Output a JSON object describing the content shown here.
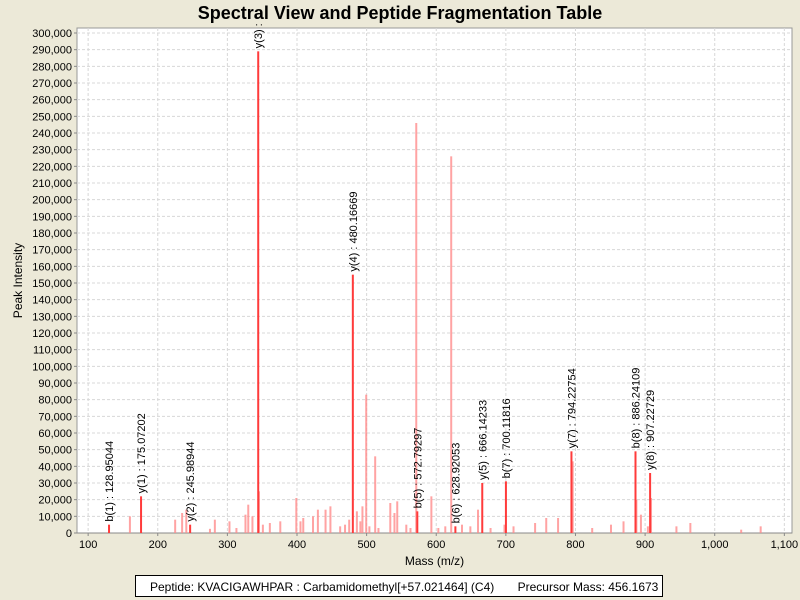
{
  "chart_data": {
    "type": "bar",
    "title": "Spectral View and Peptide Fragmentation Table",
    "xlabel": "Mass (m/z)",
    "ylabel": "Peak Intensity",
    "xlim": [
      84,
      1111
    ],
    "ylim": [
      0,
      303000
    ],
    "xticks": [
      100,
      200,
      300,
      400,
      500,
      600,
      700,
      800,
      900,
      1000,
      1100
    ],
    "xtick_labels": [
      "100",
      "200",
      "300",
      "400",
      "500",
      "600",
      "700",
      "800",
      "900",
      "1,000",
      "1,100"
    ],
    "yticks": [
      0,
      10000,
      20000,
      30000,
      40000,
      50000,
      60000,
      70000,
      80000,
      90000,
      100000,
      110000,
      120000,
      130000,
      140000,
      150000,
      160000,
      170000,
      180000,
      190000,
      200000,
      210000,
      220000,
      230000,
      240000,
      250000,
      260000,
      270000,
      280000,
      290000,
      300000
    ],
    "grid": true,
    "colors": {
      "annotated": "#ff3b3b",
      "unannotated": "#ff8c8c"
    },
    "peaks_annotated": [
      {
        "mz": 130.0,
        "intensity": 5000,
        "label": "b(1) : 128.95044"
      },
      {
        "mz": 176.0,
        "intensity": 22000,
        "label": "y(1) : 175.07202"
      },
      {
        "mz": 246.5,
        "intensity": 5000,
        "label": "y(2) : 245.98944"
      },
      {
        "mz": 344.3,
        "intensity": 289000,
        "label": "y(3) :"
      },
      {
        "mz": 480.2,
        "intensity": 155000,
        "label": "y(4) : 480.16669"
      },
      {
        "mz": 572.8,
        "intensity": 13000,
        "label": "b(5) : 572.79297"
      },
      {
        "mz": 627.5,
        "intensity": 4000,
        "label": "b(6) : 628.92053"
      },
      {
        "mz": 666.1,
        "intensity": 30000,
        "label": "y(5) : 666.14233"
      },
      {
        "mz": 700.1,
        "intensity": 31000,
        "label": "b(7) : 700.11816"
      },
      {
        "mz": 794.2,
        "intensity": 49000,
        "label": "y(7) : 794.22754"
      },
      {
        "mz": 886.2,
        "intensity": 49000,
        "label": "b(8) : 886.24109"
      },
      {
        "mz": 907.2,
        "intensity": 36000,
        "label": "y(8) : 907.22729"
      }
    ],
    "peaks": [
      [
        345.3,
        25000
      ],
      [
        571.3,
        246000
      ],
      [
        621.5,
        226000
      ],
      [
        499.4,
        83000
      ],
      [
        512.3,
        46000
      ],
      [
        796,
        43000
      ],
      [
        908.5,
        21000
      ],
      [
        887.5,
        20000
      ],
      [
        160,
        10000
      ],
      [
        225,
        8000
      ],
      [
        235,
        12000
      ],
      [
        241,
        14000
      ],
      [
        275,
        2500
      ],
      [
        282,
        8000
      ],
      [
        303,
        7000
      ],
      [
        313,
        3000
      ],
      [
        326,
        11000
      ],
      [
        330,
        17000
      ],
      [
        336,
        10000
      ],
      [
        351,
        5000
      ],
      [
        361,
        6000
      ],
      [
        376,
        7000
      ],
      [
        399,
        21000
      ],
      [
        405,
        7000
      ],
      [
        409,
        9000
      ],
      [
        423,
        10000
      ],
      [
        430,
        14000
      ],
      [
        441,
        14000
      ],
      [
        448,
        16000
      ],
      [
        462,
        4000
      ],
      [
        469,
        5000
      ],
      [
        475,
        8000
      ],
      [
        486,
        13000
      ],
      [
        491,
        7000
      ],
      [
        494,
        16000
      ],
      [
        504,
        4000
      ],
      [
        517,
        3000
      ],
      [
        534,
        18000
      ],
      [
        540,
        12000
      ],
      [
        544,
        19000
      ],
      [
        557,
        5000
      ],
      [
        563,
        3000
      ],
      [
        593,
        22000
      ],
      [
        603,
        3000
      ],
      [
        613,
        4000
      ],
      [
        637,
        5000
      ],
      [
        649,
        4000
      ],
      [
        660,
        14000
      ],
      [
        678,
        3000
      ],
      [
        698,
        5000
      ],
      [
        711,
        4000
      ],
      [
        742,
        6000
      ],
      [
        758,
        9000
      ],
      [
        775,
        9000
      ],
      [
        824,
        3000
      ],
      [
        851,
        5000
      ],
      [
        869,
        7000
      ],
      [
        894,
        11000
      ],
      [
        904,
        4000
      ],
      [
        945,
        4000
      ],
      [
        965,
        6000
      ],
      [
        1038,
        2000
      ],
      [
        1066,
        4000
      ]
    ]
  },
  "footer": {
    "peptide": "Peptide: KVACIGAWHPAR : Carbamidomethyl[+57.021464] (C4)",
    "precursor": "Precursor Mass: 456.1673"
  }
}
